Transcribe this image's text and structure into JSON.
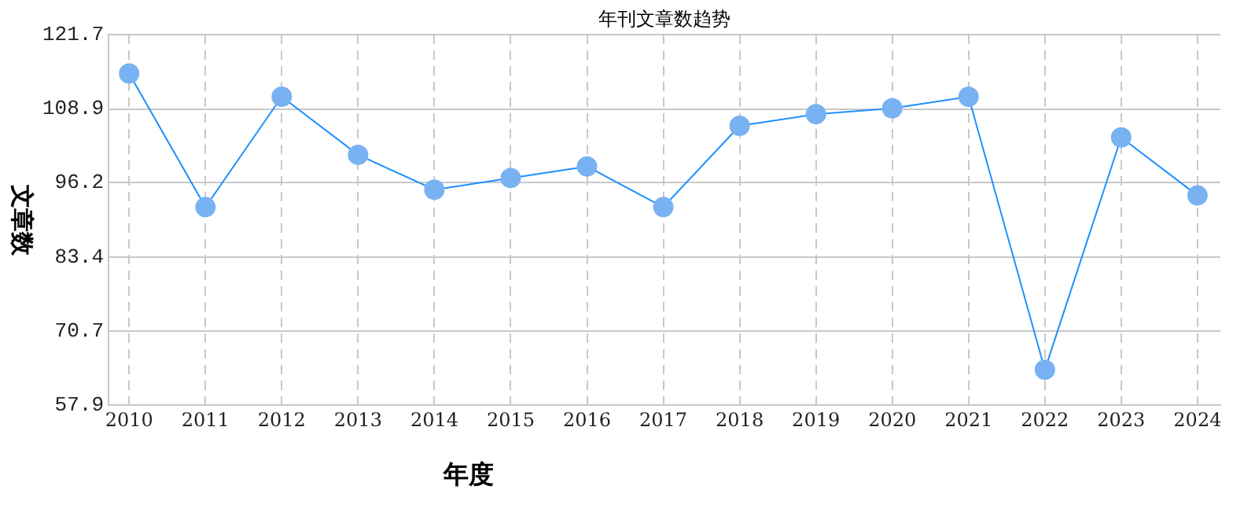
{
  "chart_data": {
    "type": "line",
    "title": "年刊文章数趋势",
    "xlabel": "年度",
    "ylabel": "文章数",
    "categories": [
      "2010",
      "2011",
      "2012",
      "2013",
      "2014",
      "2015",
      "2016",
      "2017",
      "2018",
      "2019",
      "2020",
      "2021",
      "2022",
      "2023",
      "2024"
    ],
    "values": [
      115,
      92,
      111,
      101,
      95,
      97,
      99,
      92,
      106,
      108,
      109,
      111,
      64,
      104,
      94
    ],
    "color": "#1e90ff",
    "marker": "circle",
    "grid": true,
    "legend": false,
    "ylim": [
      57.9,
      121.7
    ],
    "yticks": [
      57.9,
      70.7,
      83.4,
      96.2,
      108.9,
      121.7
    ]
  }
}
